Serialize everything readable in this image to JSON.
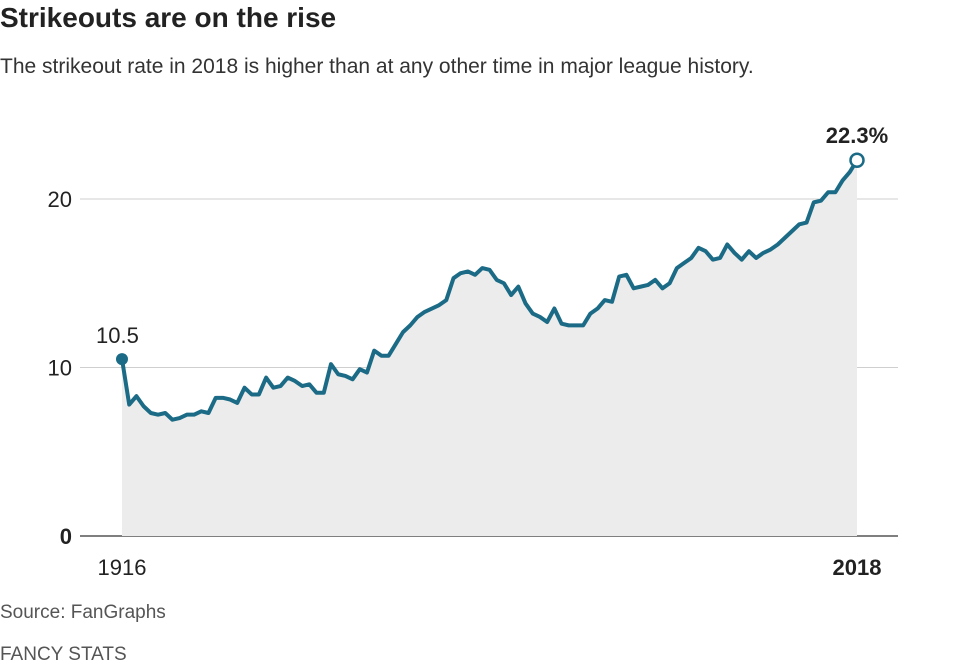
{
  "header": {
    "title": "Strikeouts are on the rise",
    "subtitle": "The strikeout rate in 2018 is higher than at any other time in major league history."
  },
  "footer": {
    "source": "Source: FanGraphs",
    "credit": "FANCY STATS"
  },
  "chart_data": {
    "type": "area",
    "title": "Strikeouts are on the rise",
    "subtitle": "The strikeout rate in 2018 is higher than at any other time in major league history.",
    "xlabel": "",
    "ylabel": "",
    "ylim": [
      0,
      25
    ],
    "xlim": [
      1916,
      2018
    ],
    "y_ticks": [
      0,
      10,
      20
    ],
    "y_tick_labels": [
      "0",
      "10",
      "20"
    ],
    "x_tick_labels": [
      {
        "value": 1916,
        "label": "1916",
        "bold": false
      },
      {
        "value": 2018,
        "label": "2018",
        "bold": true
      }
    ],
    "grid": true,
    "line_color": "#1b6b86",
    "fill_color": "#ececec",
    "annotations": [
      {
        "x": 1916,
        "y": 10.5,
        "label": "10.5",
        "marker": "filled"
      },
      {
        "x": 2018,
        "y": 22.3,
        "label": "22.3%",
        "marker": "open"
      }
    ],
    "series": [
      {
        "x": [
          1916,
          1917,
          1918,
          1919,
          1920,
          1921,
          1922,
          1923,
          1924,
          1925,
          1926,
          1927,
          1928,
          1929,
          1930,
          1931,
          1932,
          1933,
          1934,
          1935,
          1936,
          1937,
          1938,
          1939,
          1940,
          1941,
          1942,
          1943,
          1944,
          1945,
          1946,
          1947,
          1948,
          1949,
          1950,
          1951,
          1952,
          1953,
          1954,
          1955,
          1956,
          1957,
          1958,
          1959,
          1960,
          1961,
          1962,
          1963,
          1964,
          1965,
          1966,
          1967,
          1968,
          1969,
          1970,
          1971,
          1972,
          1973,
          1974,
          1975,
          1976,
          1977,
          1978,
          1979,
          1980,
          1981,
          1982,
          1983,
          1984,
          1985,
          1986,
          1987,
          1988,
          1989,
          1990,
          1991,
          1992,
          1993,
          1994,
          1995,
          1996,
          1997,
          1998,
          1999,
          2000,
          2001,
          2002,
          2003,
          2004,
          2005,
          2006,
          2007,
          2008,
          2009,
          2010,
          2011,
          2012,
          2013,
          2014,
          2015,
          2016,
          2017,
          2018
        ],
        "values": [
          10.5,
          7.8,
          8.3,
          7.7,
          7.3,
          7.2,
          7.3,
          6.9,
          7.0,
          7.2,
          7.2,
          7.4,
          7.3,
          8.2,
          8.2,
          8.1,
          7.9,
          8.8,
          8.4,
          8.4,
          9.4,
          8.8,
          8.9,
          9.4,
          9.2,
          8.9,
          9.0,
          8.5,
          8.5,
          10.2,
          9.6,
          9.5,
          9.3,
          9.9,
          9.7,
          11.0,
          10.7,
          10.7,
          11.4,
          12.1,
          12.5,
          13.0,
          13.3,
          13.5,
          13.7,
          14.0,
          15.3,
          15.6,
          15.7,
          15.5,
          15.9,
          15.8,
          15.2,
          15.0,
          14.3,
          14.8,
          13.8,
          13.2,
          13.0,
          12.7,
          13.5,
          12.6,
          12.5,
          12.5,
          12.5,
          13.2,
          13.5,
          14.0,
          13.9,
          15.4,
          15.5,
          14.7,
          14.8,
          14.9,
          15.2,
          14.7,
          15.0,
          15.9,
          16.2,
          16.5,
          17.1,
          16.9,
          16.4,
          16.5,
          17.3,
          16.8,
          16.4,
          16.9,
          16.5,
          16.8,
          17.0,
          17.3,
          17.7,
          18.1,
          18.5,
          18.6,
          19.8,
          19.9,
          20.4,
          20.4,
          21.1,
          21.6,
          22.3
        ]
      }
    ]
  }
}
